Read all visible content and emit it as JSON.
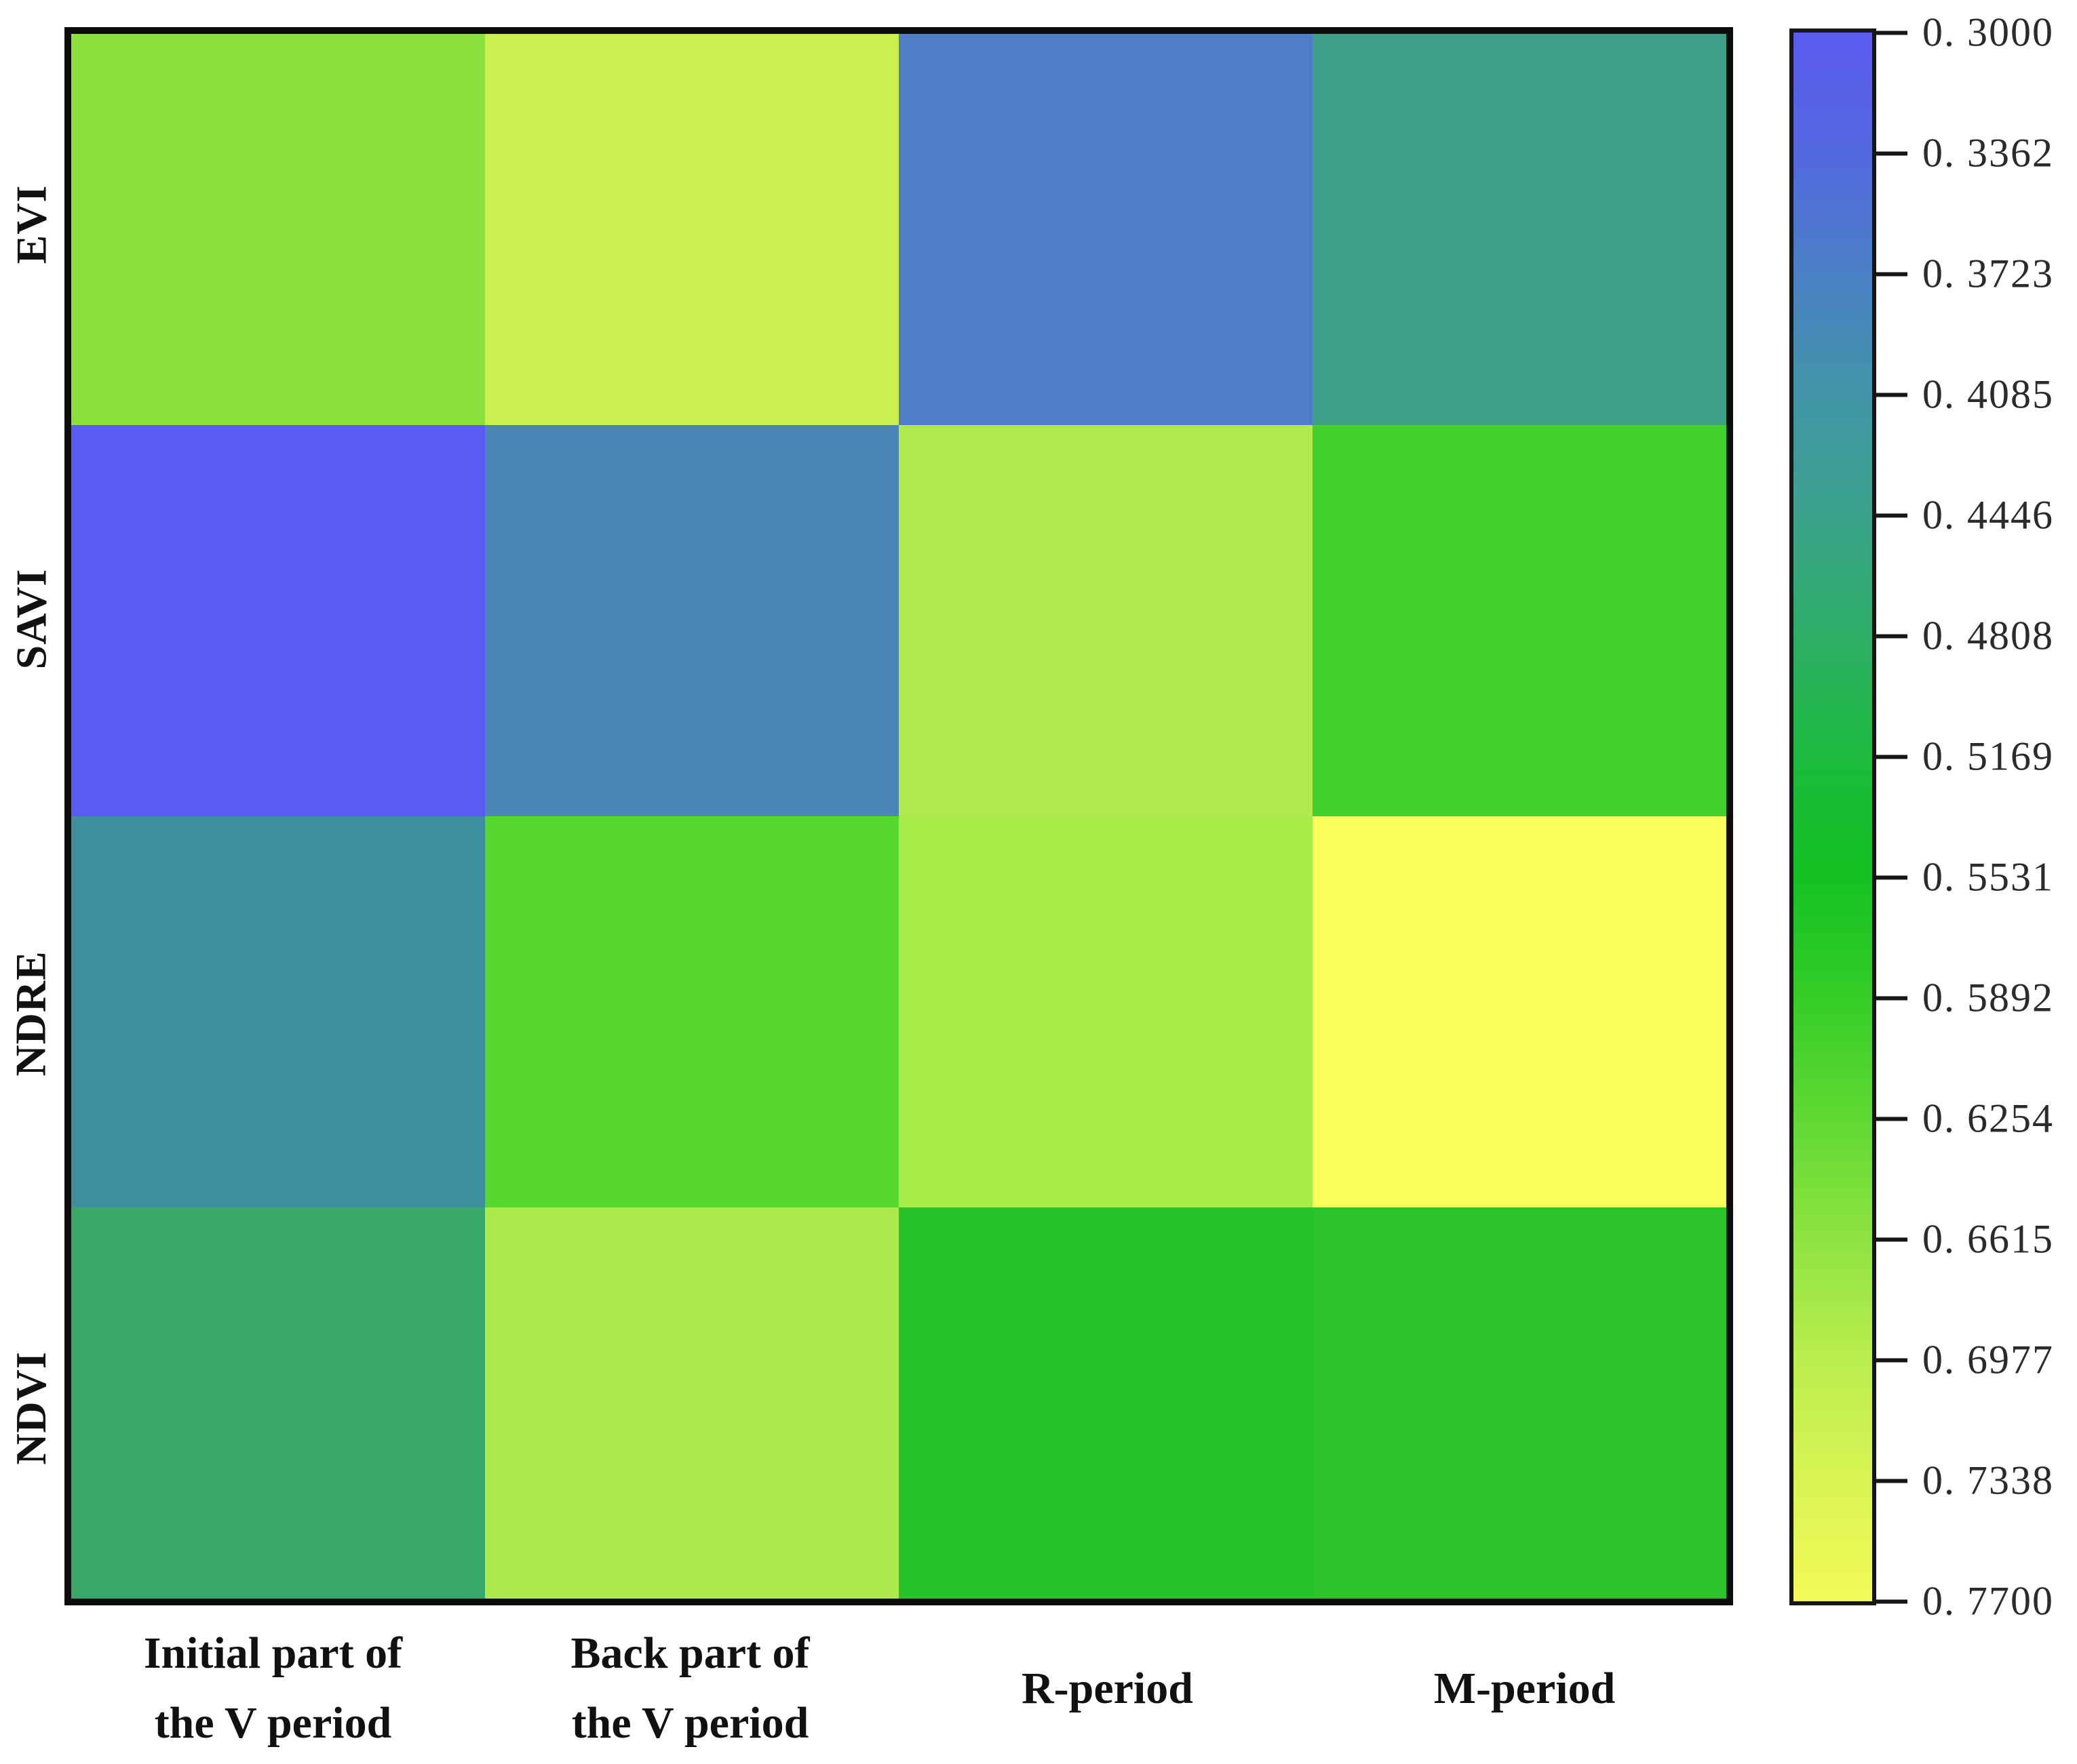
{
  "figure": {
    "background": "#ffffff",
    "plot_border_color": "#0d0d0d",
    "text_color": "#111111"
  },
  "chart_data": {
    "type": "heatmap",
    "title": "",
    "xlabel": "",
    "ylabel": "",
    "rows": [
      "EVI",
      "SAVI",
      "NDRE",
      "NDVI"
    ],
    "columns": [
      "Initial part of the V period",
      "Back part of the V period",
      "R-period",
      "M-period"
    ],
    "column_label_lines": [
      [
        "Initial part of",
        "the V period"
      ],
      [
        "Back part of",
        "the V period"
      ],
      [
        "R-period"
      ],
      [
        "M-period"
      ]
    ],
    "values": [
      [
        0.65,
        0.71,
        0.37,
        0.43
      ],
      [
        0.3,
        0.39,
        0.69,
        0.59
      ],
      [
        0.41,
        0.6,
        0.68,
        0.77
      ],
      [
        0.46,
        0.68,
        0.55,
        0.55
      ]
    ],
    "cell_colors": [
      [
        "#8ce03c",
        "#c9f04e",
        "#4f7ec6",
        "#3f9e87"
      ],
      [
        "#5a5bf2",
        "#4a87b8",
        "#aeea4b",
        "#43d02f"
      ],
      [
        "#3e8f9e",
        "#55d72e",
        "#a9ec49",
        "#fbff5b"
      ],
      [
        "#37a869",
        "#ace94c",
        "#27c32d",
        "#2bc42b"
      ]
    ],
    "grid": false,
    "legend_position": "none",
    "colorbar": {
      "min": 0.3,
      "max": 0.77,
      "orientation": "vertical, minimum value at top",
      "tick_labels": [
        "0. 3000",
        "0. 3362",
        "0. 3723",
        "0. 4085",
        "0. 4446",
        "0. 4808",
        "0. 5169",
        "0. 5531",
        "0. 5892",
        "0. 6254",
        "0. 6615",
        "0. 6977",
        "0. 7338",
        "0. 7700"
      ],
      "gradient_stops_top_to_bottom": [
        "#5b5bef",
        "#5368e0",
        "#4a80c5",
        "#4295a8",
        "#3aa28b",
        "#2dae66",
        "#1cba3e",
        "#14c222",
        "#35cd27",
        "#60d932",
        "#8ee342",
        "#baee4e",
        "#d9f453",
        "#f3fa58"
      ]
    }
  }
}
